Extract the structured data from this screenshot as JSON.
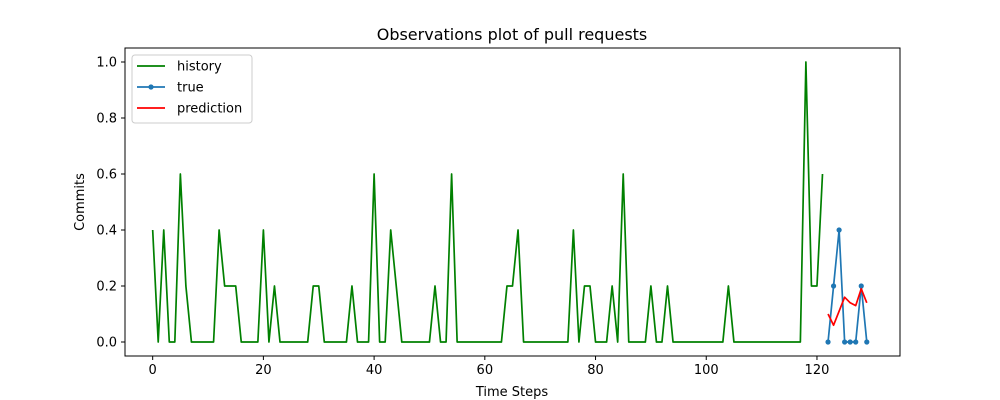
{
  "chart_data": {
    "type": "line",
    "title": "Observations plot of pull requests",
    "xlabel": "Time Steps",
    "ylabel": "Commits",
    "xlim": [
      -5,
      135
    ],
    "ylim": [
      -0.05,
      1.05
    ],
    "xticks": [
      0,
      20,
      40,
      60,
      80,
      100,
      120
    ],
    "yticks": [
      0.0,
      0.2,
      0.4,
      0.6,
      0.8,
      1.0
    ],
    "grid": false,
    "legend_position": "top-left",
    "series": [
      {
        "name": "history",
        "color": "#008000",
        "marker": false,
        "x": [
          0,
          1,
          2,
          3,
          4,
          5,
          6,
          7,
          8,
          9,
          10,
          11,
          12,
          13,
          14,
          15,
          16,
          17,
          18,
          19,
          20,
          21,
          22,
          23,
          24,
          25,
          26,
          27,
          28,
          29,
          30,
          31,
          32,
          33,
          34,
          35,
          36,
          37,
          38,
          39,
          40,
          41,
          42,
          43,
          44,
          45,
          46,
          47,
          48,
          49,
          50,
          51,
          52,
          53,
          54,
          55,
          56,
          57,
          58,
          59,
          60,
          61,
          62,
          63,
          64,
          65,
          66,
          67,
          68,
          69,
          70,
          71,
          72,
          73,
          74,
          75,
          76,
          77,
          78,
          79,
          80,
          81,
          82,
          83,
          84,
          85,
          86,
          87,
          88,
          89,
          90,
          91,
          92,
          93,
          94,
          95,
          96,
          97,
          98,
          99,
          100,
          101,
          102,
          103,
          104,
          105,
          106,
          107,
          108,
          109,
          110,
          111,
          112,
          113,
          114,
          115,
          116,
          117,
          118,
          119,
          120,
          121
        ],
        "values": [
          0.4,
          0.0,
          0.4,
          0.0,
          0.0,
          0.6,
          0.2,
          0.0,
          0.0,
          0.0,
          0.0,
          0.0,
          0.4,
          0.2,
          0.2,
          0.2,
          0.0,
          0.0,
          0.0,
          0.0,
          0.4,
          0.0,
          0.2,
          0.0,
          0.0,
          0.0,
          0.0,
          0.0,
          0.0,
          0.2,
          0.2,
          0.0,
          0.0,
          0.0,
          0.0,
          0.0,
          0.2,
          0.0,
          0.0,
          0.0,
          0.6,
          0.0,
          0.0,
          0.4,
          0.2,
          0.0,
          0.0,
          0.0,
          0.0,
          0.0,
          0.0,
          0.2,
          0.0,
          0.0,
          0.6,
          0.0,
          0.0,
          0.0,
          0.0,
          0.0,
          0.0,
          0.0,
          0.0,
          0.0,
          0.2,
          0.2,
          0.4,
          0.0,
          0.0,
          0.0,
          0.0,
          0.0,
          0.0,
          0.0,
          0.0,
          0.0,
          0.4,
          0.0,
          0.2,
          0.2,
          0.0,
          0.0,
          0.0,
          0.2,
          0.0,
          0.6,
          0.0,
          0.0,
          0.0,
          0.0,
          0.2,
          0.0,
          0.0,
          0.2,
          0.0,
          0.0,
          0.0,
          0.0,
          0.0,
          0.0,
          0.0,
          0.0,
          0.0,
          0.0,
          0.2,
          0.0,
          0.0,
          0.0,
          0.0,
          0.0,
          0.0,
          0.0,
          0.0,
          0.0,
          0.0,
          0.0,
          0.0,
          0.0,
          1.0,
          0.2,
          0.2,
          0.6
        ]
      },
      {
        "name": "true",
        "color": "#1f77b4",
        "marker": true,
        "x": [
          122,
          123,
          124,
          125,
          126,
          127,
          128,
          129
        ],
        "values": [
          0.0,
          0.2,
          0.4,
          0.0,
          0.0,
          0.0,
          0.2,
          0.0
        ]
      },
      {
        "name": "prediction",
        "color": "#ff0000",
        "marker": false,
        "x": [
          122,
          123,
          124,
          125,
          126,
          127,
          128,
          129
        ],
        "values": [
          0.1,
          0.06,
          0.11,
          0.16,
          0.14,
          0.13,
          0.19,
          0.14
        ]
      }
    ]
  }
}
